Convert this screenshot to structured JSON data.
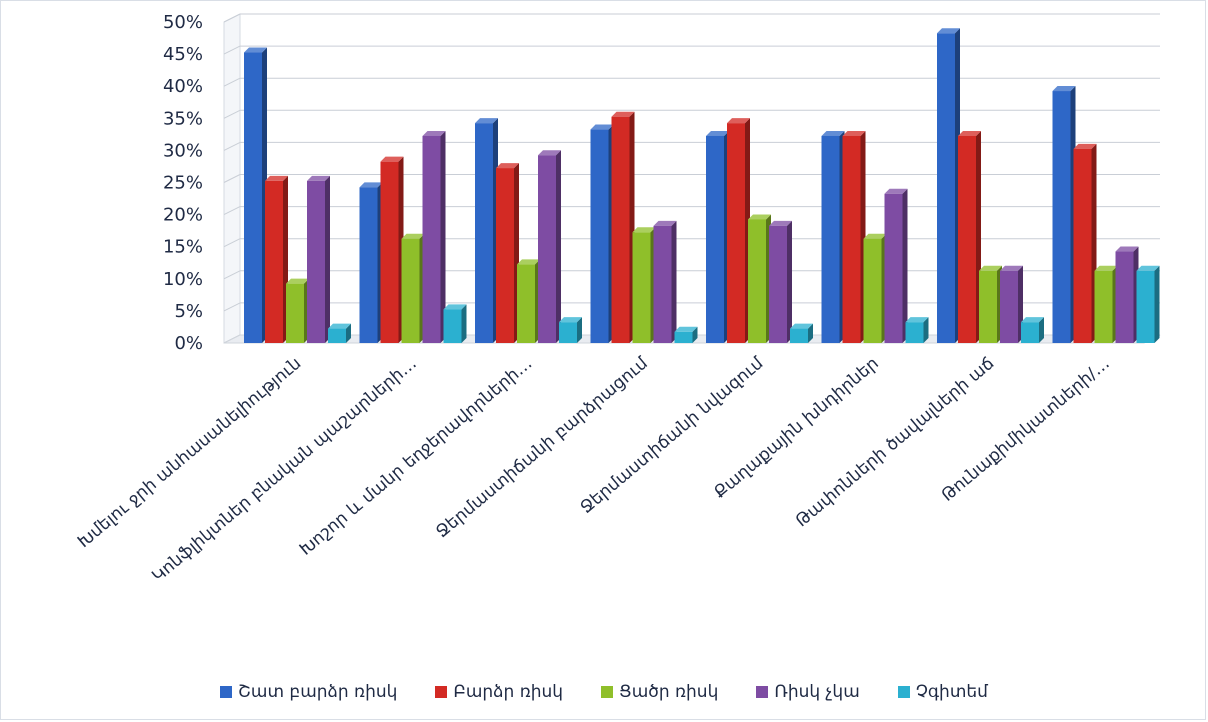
{
  "chart_data": {
    "type": "bar",
    "categories": [
      "Խմելու ջրի անհասանելիություն",
      "Կոնֆլիկտներ բնական պաշարների…",
      "Խոշոր և մանր եղջերավորների…",
      "Ջերմաստիճանի բարձրացում",
      "Ջերմաստիճանի նվազում",
      "Քաղաքային խնդիրներ",
      "Թափոնների ծավալների աճ",
      "Թունաքիմիկատների/…"
    ],
    "series": [
      {
        "name": "Շատ բարձր ռիսկ",
        "color": "#2e67c7",
        "values": [
          44,
          23,
          33,
          32,
          31,
          31,
          47,
          38
        ]
      },
      {
        "name": "Բարձր ռիսկ",
        "color": "#d32a24",
        "values": [
          24,
          27,
          26,
          34,
          33,
          31,
          31,
          29
        ]
      },
      {
        "name": "Ցածր ռիսկ",
        "color": "#8fbf2a",
        "values": [
          8,
          15,
          11,
          16,
          18,
          15,
          10,
          10
        ]
      },
      {
        "name": "Ռիսկ չկա",
        "color": "#7e4ca3",
        "values": [
          24,
          31,
          28,
          17,
          17,
          22,
          10,
          13
        ]
      },
      {
        "name": "Չգիտեմ",
        "color": "#2bb0d0",
        "values": [
          1,
          4,
          2,
          0.5,
          1,
          2,
          2,
          10
        ]
      }
    ],
    "yticks": [
      "0%",
      "5%",
      "10%",
      "15%",
      "20%",
      "25%",
      "30%",
      "35%",
      "40%",
      "45%",
      "50%"
    ],
    "ylim": [
      0,
      50
    ],
    "grid": true,
    "legend_position": "bottom"
  }
}
